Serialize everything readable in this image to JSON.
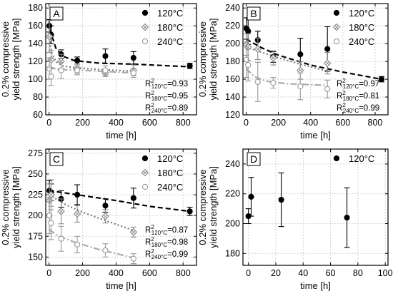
{
  "chart_data": [
    {
      "type": "scatter",
      "panel_label": "A",
      "xlabel": "time [h]",
      "ylabel": "0.2% compressive\nyield strength [MPa]",
      "xlim": [
        -20,
        880
      ],
      "ylim": [
        60,
        185
      ],
      "xticks": [
        0,
        200,
        400,
        600,
        800
      ],
      "yticks": [
        60,
        80,
        100,
        120,
        140,
        160,
        180
      ],
      "grid": true,
      "legend_position": "top-right",
      "series": [
        {
          "name": "120°C",
          "marker": "filled-circle",
          "color": "#000000",
          "fit_style": "dash",
          "points": [
            [
              2,
              160,
              7
            ],
            [
              12,
              150,
              10
            ],
            [
              72,
              128,
              5
            ],
            [
              168,
              121,
              4
            ],
            [
              336,
              126,
              8
            ],
            [
              504,
              124,
              7
            ],
            [
              840,
              115,
              3
            ]
          ],
          "fit": [
            [
              0,
              165
            ],
            [
              15,
              150
            ],
            [
              40,
              135
            ],
            [
              80,
              126
            ],
            [
              150,
              121
            ],
            [
              300,
              118
            ],
            [
              500,
              117
            ],
            [
              840,
              114
            ]
          ]
        },
        {
          "name": "180°C",
          "marker": "crossed-diamond",
          "color": "#888888",
          "fit_style": "dot",
          "points": [
            [
              2,
              148,
              18
            ],
            [
              12,
              122,
              10
            ],
            [
              72,
              120,
              8
            ],
            [
              168,
              112,
              5
            ],
            [
              336,
              107,
              4
            ],
            [
              504,
              110,
              6
            ]
          ],
          "fit": [
            [
              0,
              150
            ],
            [
              15,
              130
            ],
            [
              40,
              120
            ],
            [
              80,
              115
            ],
            [
              150,
              113
            ],
            [
              300,
              111
            ],
            [
              504,
              109
            ]
          ]
        },
        {
          "name": "240°C",
          "marker": "open-circle",
          "color": "#999999",
          "fit_style": "dashdot",
          "points": [
            [
              2,
              112,
              12
            ],
            [
              12,
              103,
              10
            ],
            [
              72,
              110,
              9
            ],
            [
              168,
              110,
              5
            ],
            [
              336,
              110,
              5
            ],
            [
              504,
              107,
              5
            ]
          ],
          "fit": [
            [
              0,
              113
            ],
            [
              60,
              111
            ],
            [
              200,
              110
            ],
            [
              504,
              107
            ]
          ]
        }
      ],
      "annotations": [
        {
          "base": "R",
          "sup": "2",
          "sub": "120°C",
          "value": "=0.93"
        },
        {
          "base": "R",
          "sup": "2",
          "sub": "180°C",
          "value": "=0.95"
        },
        {
          "base": "R",
          "sup": "2",
          "sub": "240°C",
          "value": "=0.89"
        }
      ]
    },
    {
      "type": "scatter",
      "panel_label": "B",
      "xlabel": "time [h]",
      "ylabel": "0.2% compressive\nyield strength [MPa]",
      "xlim": [
        -20,
        880
      ],
      "ylim": [
        120,
        245
      ],
      "xticks": [
        0,
        200,
        400,
        600,
        800
      ],
      "yticks": [
        120,
        140,
        160,
        180,
        200,
        220,
        240
      ],
      "grid": true,
      "legend_position": "top-right",
      "series": [
        {
          "name": "120°C",
          "marker": "filled-circle",
          "color": "#000000",
          "fit_style": "dash",
          "points": [
            [
              2,
              217,
              12
            ],
            [
              12,
              214,
              15
            ],
            [
              72,
              204,
              10
            ],
            [
              168,
              185,
              6
            ],
            [
              336,
              188,
              18
            ],
            [
              504,
              194,
              25
            ],
            [
              840,
              160,
              3
            ]
          ],
          "fit": [
            [
              0,
              205
            ],
            [
              100,
              195
            ],
            [
              200,
              187
            ],
            [
              400,
              176
            ],
            [
              600,
              168
            ],
            [
              840,
              160
            ]
          ]
        },
        {
          "name": "180°C",
          "marker": "crossed-diamond",
          "color": "#888888",
          "fit_style": "dot",
          "points": [
            [
              2,
              199,
              12
            ],
            [
              12,
              196,
              15
            ],
            [
              72,
              194,
              12
            ],
            [
              168,
              184,
              8
            ],
            [
              336,
              170,
              10
            ],
            [
              504,
              178,
              12
            ]
          ],
          "fit": [
            [
              0,
              196
            ],
            [
              100,
              190
            ],
            [
              200,
              184
            ],
            [
              336,
              177
            ],
            [
              504,
              169
            ]
          ]
        },
        {
          "name": "240°C",
          "marker": "open-circle",
          "color": "#999999",
          "fit_style": "dashdot",
          "points": [
            [
              2,
              182,
              20
            ],
            [
              12,
              176,
              18
            ],
            [
              72,
              157,
              22
            ],
            [
              168,
              156,
              6
            ],
            [
              336,
              152,
              15
            ],
            [
              504,
              149,
              10
            ]
          ],
          "fit": [
            [
              0,
              172
            ],
            [
              50,
              163
            ],
            [
              120,
              158
            ],
            [
              250,
              155
            ],
            [
              504,
              153
            ]
          ]
        }
      ],
      "annotations": [
        {
          "base": "R",
          "sup": "2",
          "sub": "120°C",
          "value": "=0.97"
        },
        {
          "base": "R",
          "sup": "2",
          "sub": "180°C",
          "value": "=0.81"
        },
        {
          "base": "R",
          "sup": "2",
          "sub": "240°C",
          "value": "=0.99"
        }
      ]
    },
    {
      "type": "scatter",
      "panel_label": "C",
      "xlabel": "time [h]",
      "ylabel": "0.2% compressive\nyield strength [MPa]",
      "xlim": [
        -20,
        880
      ],
      "ylim": [
        140,
        280
      ],
      "xticks": [
        0,
        200,
        400,
        600,
        800
      ],
      "yticks": [
        150,
        175,
        200,
        225,
        250,
        275
      ],
      "grid": true,
      "legend_position": "top-right",
      "series": [
        {
          "name": "120°C",
          "marker": "filled-circle",
          "color": "#000000",
          "fit_style": "dash",
          "points": [
            [
              2,
              230,
              12
            ],
            [
              12,
              228,
              10
            ],
            [
              72,
              220,
              10
            ],
            [
              168,
              225,
              12
            ],
            [
              336,
              212,
              8
            ],
            [
              504,
              221,
              12
            ],
            [
              840,
              205,
              5
            ]
          ],
          "fit": [
            [
              0,
              230
            ],
            [
              200,
              224
            ],
            [
              400,
              218
            ],
            [
              600,
              211
            ],
            [
              840,
              205
            ]
          ]
        },
        {
          "name": "180°C",
          "marker": "crossed-diamond",
          "color": "#888888",
          "fit_style": "dot",
          "points": [
            [
              2,
              218,
              20
            ],
            [
              12,
              225,
              18
            ],
            [
              72,
              205,
              15
            ],
            [
              168,
              202,
              10
            ],
            [
              336,
              199,
              8
            ],
            [
              504,
              180,
              6
            ]
          ],
          "fit": [
            [
              0,
              225
            ],
            [
              100,
              213
            ],
            [
              200,
              204
            ],
            [
              336,
              194
            ],
            [
              504,
              182
            ]
          ]
        },
        {
          "name": "240°C",
          "marker": "open-circle",
          "color": "#999999",
          "fit_style": "dashdot",
          "points": [
            [
              2,
              200,
              22
            ],
            [
              12,
              191,
              20
            ],
            [
              72,
              172,
              15
            ],
            [
              168,
              165,
              10
            ],
            [
              336,
              158,
              8
            ],
            [
              504,
              148,
              6
            ]
          ],
          "fit": [
            [
              0,
              183
            ],
            [
              50,
              176
            ],
            [
              150,
              168
            ],
            [
              300,
              159
            ],
            [
              504,
              149
            ]
          ]
        }
      ],
      "annotations": [
        {
          "base": "R",
          "sup": "2",
          "sub": "120°C",
          "value": "=0.87"
        },
        {
          "base": "R",
          "sup": "2",
          "sub": "180°C",
          "value": "=0.98"
        },
        {
          "base": "R",
          "sup": "2",
          "sub": "240°C",
          "value": "=0.99"
        }
      ]
    },
    {
      "type": "scatter",
      "panel_label": "D",
      "xlabel": "time [h]",
      "ylabel": "0.2% compressive\nyield strength [MPa]",
      "xlim": [
        -4,
        102
      ],
      "ylim": [
        172,
        250
      ],
      "xticks": [
        0,
        20,
        40,
        60,
        80,
        100
      ],
      "yticks": [
        180,
        200,
        220,
        240
      ],
      "grid": true,
      "legend_position": "top-right",
      "series": [
        {
          "name": "120°C",
          "marker": "filled-circle",
          "color": "#000000",
          "fit_style": "none",
          "points": [
            [
              0,
              205,
              5
            ],
            [
              2,
              218,
              13
            ],
            [
              24,
              216,
              18
            ],
            [
              72,
              204,
              20
            ]
          ],
          "fit": []
        }
      ],
      "annotations": []
    }
  ]
}
